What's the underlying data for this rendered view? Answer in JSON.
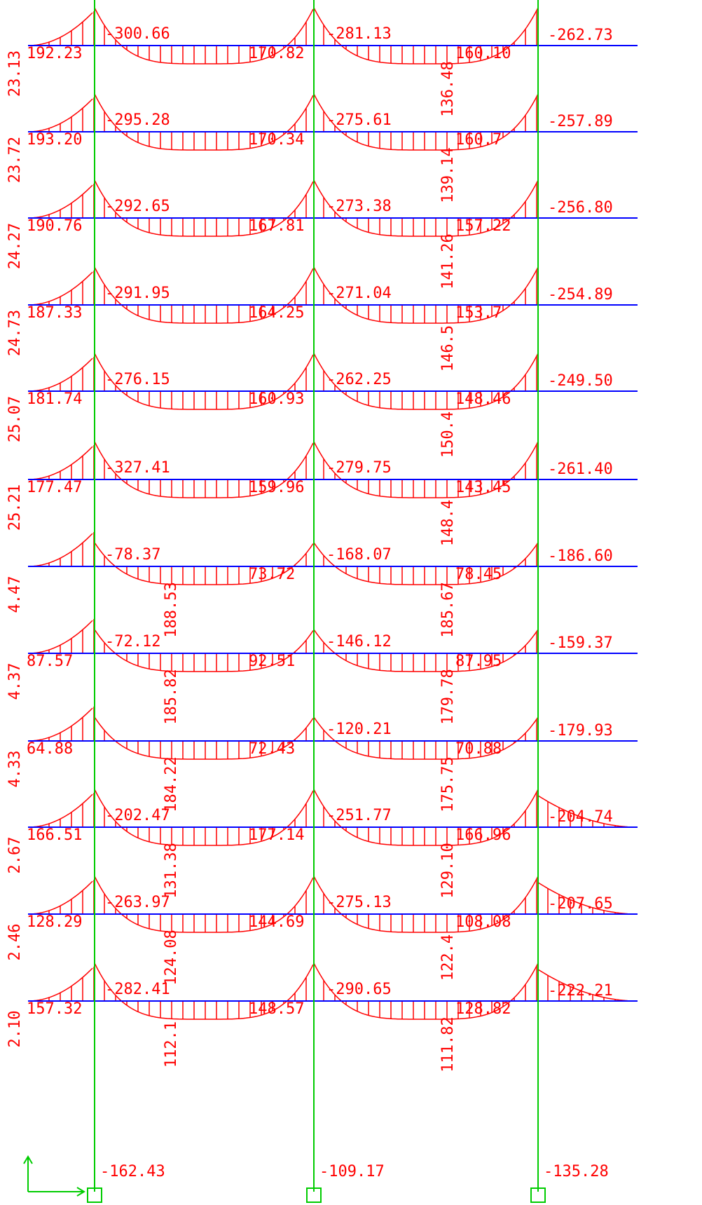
{
  "floors": [
    {
      "story": "23.13",
      "left": "192.23",
      "c1": "-300.66",
      "mid1": "170.82",
      "c2": "-281.13",
      "mid2": "160.10",
      "c3": "-262.73"
    },
    {
      "story": "23.72",
      "left": "193.20",
      "c1": "-295.28",
      "mid1": "170.34",
      "c2": "-275.61",
      "mid2": "160.7",
      "c3": "-257.89"
    },
    {
      "story": "24.27",
      "left": "190.76",
      "c1": "-292.65",
      "mid1": "167.81",
      "c2": "-273.38",
      "mid2": "157.22",
      "c3": "-256.80"
    },
    {
      "story": "24.73",
      "left": "187.33",
      "c1": "-291.95",
      "mid1": "164.25",
      "c2": "-271.04",
      "mid2": "153.7",
      "c3": "-254.89"
    },
    {
      "story": "25.07",
      "left": "181.74",
      "c1": "-276.15",
      "mid1": "160.93",
      "c2": "-262.25",
      "mid2": "148.46",
      "c3": "-249.50"
    },
    {
      "story": "25.21",
      "left": "177.47",
      "c1": "-327.41",
      "mid1": "159.96",
      "c2": "-279.75",
      "mid2": "143.45",
      "c3": "-261.40"
    },
    {
      "story": "4.47",
      "c1": "-78.37",
      "mid1": "73.72",
      "c2": "-168.07",
      "mid2": "78.45",
      "c3": "-186.60"
    },
    {
      "story": "4.37",
      "left": "87.57",
      "c1": "-72.12",
      "mid1": "92.51",
      "c2": "-146.12",
      "mid2": "87.95",
      "c3": "-159.37"
    },
    {
      "story": "4.33",
      "left": "64.88",
      "mid1": "72.43",
      "c2": "-120.21",
      "mid2": "70.88",
      "c3": "-179.93"
    },
    {
      "story": "2.67",
      "left": "166.51",
      "c1": "-202.47",
      "mid1": "177.14",
      "c2": "-251.77",
      "mid2": "166.96",
      "c3": "-204.74"
    },
    {
      "story": "2.46",
      "left": "128.29",
      "c1": "-263.97",
      "mid1": "144.69",
      "c2": "-275.13",
      "mid2": "108.08",
      "c3": "-207.65"
    },
    {
      "story": "2.10",
      "left": "157.32",
      "c1": "-282.41",
      "mid1": "148.57",
      "c2": "-290.65",
      "mid2": "128.82",
      "c3": "-222.21"
    }
  ],
  "span1_upper": [
    "188.53",
    "185.82",
    "184.22",
    "131.38",
    "124.08",
    "112.1"
  ],
  "span2_upper": [
    "136.48",
    "139.14",
    "141.26",
    "146.5",
    "150.4",
    "148.4",
    "185.67",
    "179.78",
    "175.75",
    "129.10",
    "122.4",
    "111.82"
  ],
  "base": [
    "-162.43",
    "-109.17",
    "-135.28"
  ]
}
